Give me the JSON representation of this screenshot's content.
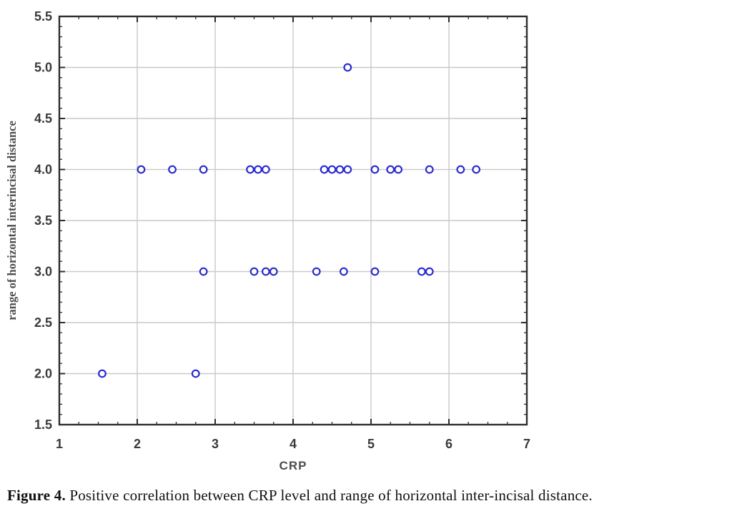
{
  "figure": {
    "caption_label": "Figure 4.",
    "caption_text": " Positive correlation between CRP level and range of horizontal inter-incisal distance."
  },
  "chart_data": {
    "type": "scatter",
    "title": "",
    "xlabel": "CRP",
    "ylabel": "range of horizontal interincisal distance",
    "xlim": [
      1,
      7
    ],
    "ylim": [
      1.5,
      5.5
    ],
    "x_tick_labels": [
      "1",
      "2",
      "3",
      "4",
      "5",
      "6",
      "7"
    ],
    "y_tick_labels": [
      "1.5",
      "2.0",
      "2.5",
      "3.0",
      "3.5",
      "4.0",
      "4.5",
      "5.0",
      "5.5"
    ],
    "x_minor_step": 0.25,
    "y_minor_step": 0.1,
    "grid": true,
    "legend": "none",
    "marker": {
      "shape": "open-circle",
      "radius_px": 4.8,
      "stroke_px": 2.2
    },
    "colors": {
      "marker": "#2a2ad0",
      "grid": "#c9c9c9",
      "frame": "#2d2d2d",
      "tick_label": "#3a3a3a",
      "axis_title": "#4d4d4d",
      "background": "#ffffff"
    },
    "points": [
      {
        "x": 1.55,
        "y": 2.0
      },
      {
        "x": 2.75,
        "y": 2.0
      },
      {
        "x": 2.85,
        "y": 3.0
      },
      {
        "x": 3.5,
        "y": 3.0
      },
      {
        "x": 3.65,
        "y": 3.0
      },
      {
        "x": 3.75,
        "y": 3.0
      },
      {
        "x": 4.3,
        "y": 3.0
      },
      {
        "x": 4.65,
        "y": 3.0
      },
      {
        "x": 5.05,
        "y": 3.0
      },
      {
        "x": 5.65,
        "y": 3.0
      },
      {
        "x": 5.75,
        "y": 3.0
      },
      {
        "x": 2.05,
        "y": 4.0
      },
      {
        "x": 2.45,
        "y": 4.0
      },
      {
        "x": 2.85,
        "y": 4.0
      },
      {
        "x": 3.45,
        "y": 4.0
      },
      {
        "x": 3.55,
        "y": 4.0
      },
      {
        "x": 3.65,
        "y": 4.0
      },
      {
        "x": 4.4,
        "y": 4.0
      },
      {
        "x": 4.5,
        "y": 4.0
      },
      {
        "x": 4.6,
        "y": 4.0
      },
      {
        "x": 4.7,
        "y": 4.0
      },
      {
        "x": 5.05,
        "y": 4.0
      },
      {
        "x": 5.25,
        "y": 4.0
      },
      {
        "x": 5.35,
        "y": 4.0
      },
      {
        "x": 5.75,
        "y": 4.0
      },
      {
        "x": 6.15,
        "y": 4.0
      },
      {
        "x": 6.35,
        "y": 4.0
      },
      {
        "x": 4.7,
        "y": 5.0
      }
    ]
  }
}
